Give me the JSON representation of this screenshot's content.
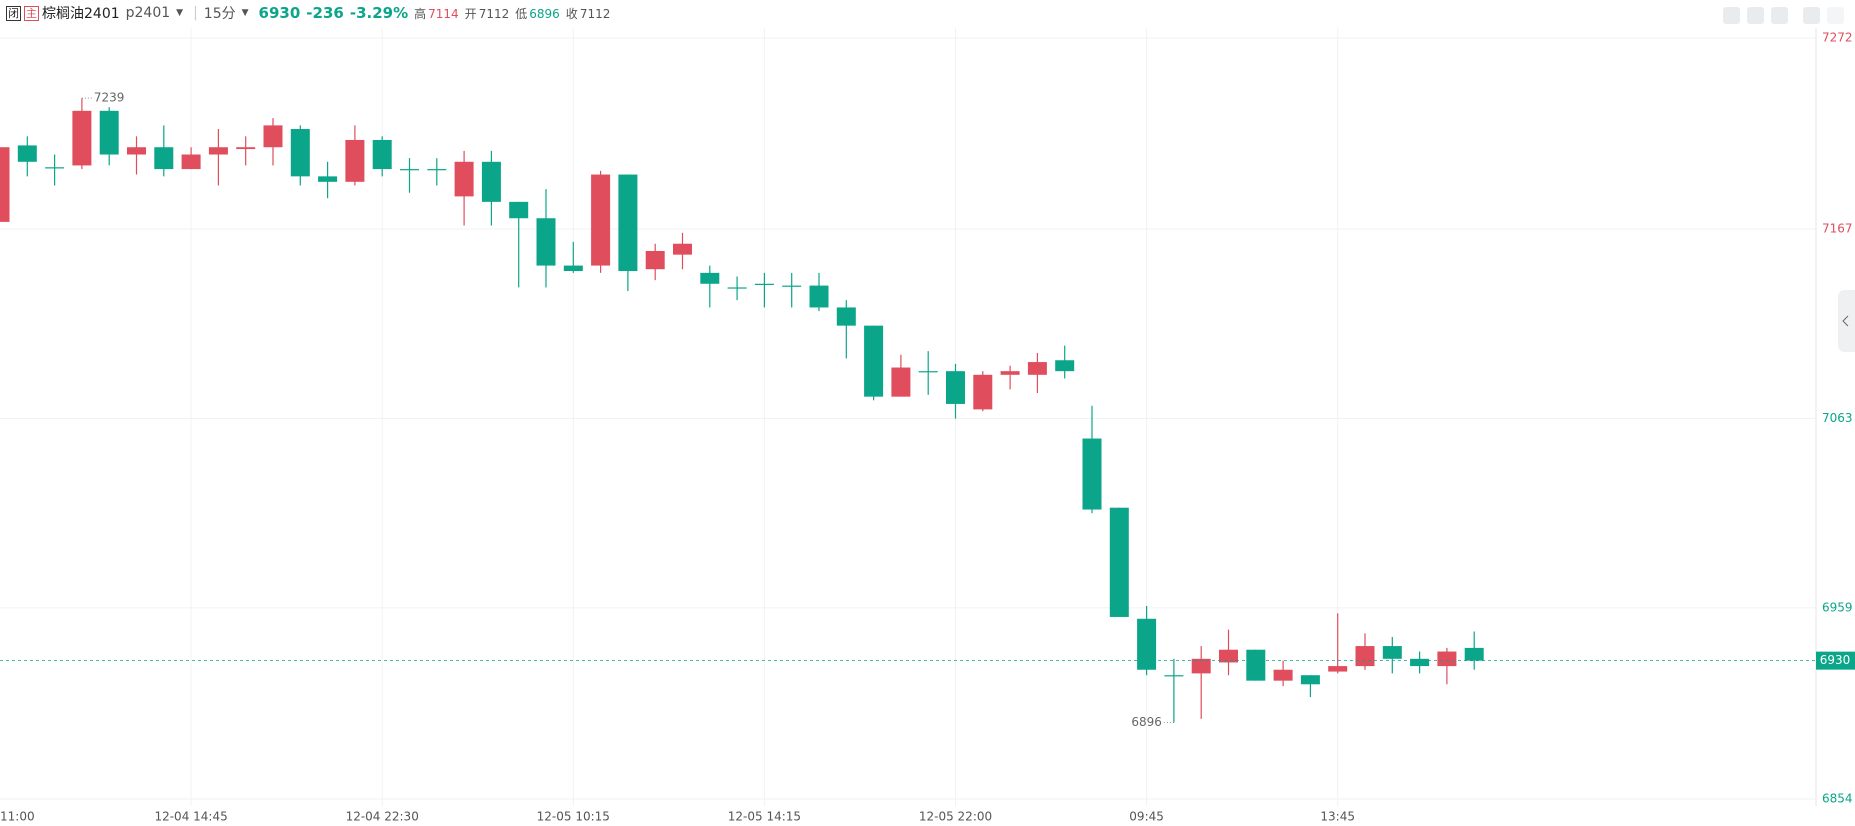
{
  "toolbar": {
    "close_badge": "闭",
    "main_badge": "主",
    "name": "棕榈油2401",
    "code": "p2401",
    "period": "15分",
    "price": 6930,
    "change": -236,
    "change_pct": "-3.29%",
    "stats": [
      {
        "label": "高",
        "value": 7114
      },
      {
        "label": "开",
        "value": 7112
      },
      {
        "label": "低",
        "value": 6896
      },
      {
        "label": "收",
        "value": 7112
      }
    ]
  },
  "chart_data": {
    "type": "candlestick",
    "categories": [
      "11:00",
      null,
      null,
      null,
      null,
      null,
      null,
      "12-04 14:45",
      null,
      null,
      null,
      null,
      null,
      null,
      "12-04 22:30",
      null,
      null,
      null,
      null,
      null,
      null,
      "12-05 10:15",
      null,
      null,
      null,
      null,
      null,
      null,
      "12-05 14:15",
      null,
      null,
      null,
      null,
      null,
      null,
      "12-05 22:00",
      null,
      null,
      null,
      null,
      null,
      null,
      "09:45",
      null,
      null,
      null,
      null,
      null,
      null,
      "13:45",
      null,
      null,
      null,
      null,
      null
    ],
    "open": [
      7171,
      7213,
      7201,
      7202,
      7232,
      7208,
      7212,
      7200,
      7208,
      7211,
      7212,
      7222,
      7196,
      7193,
      7216,
      7200,
      7200,
      7185,
      7204,
      7182,
      7173,
      7147,
      7147,
      7197,
      7145,
      7153,
      7143,
      7135,
      7137,
      7136,
      7136,
      7124,
      7114,
      7075,
      7089,
      7089,
      7068,
      7087,
      7087,
      7095,
      7052,
      7014,
      6953,
      6922,
      6923,
      6929,
      6936,
      6919,
      6922,
      6924,
      6927,
      6938,
      6931,
      6927,
      6937
    ],
    "high": [
      7212,
      7218,
      7208,
      7239,
      7234,
      7218,
      7224,
      7212,
      7222,
      7218,
      7228,
      7224,
      7204,
      7224,
      7218,
      7206,
      7206,
      7210,
      7210,
      7182,
      7189,
      7160,
      7199,
      7197,
      7159,
      7165,
      7147,
      7141,
      7143,
      7143,
      7143,
      7128,
      7114,
      7098,
      7100,
      7093,
      7089,
      7092,
      7099,
      7103,
      7070,
      7014,
      6960,
      6931,
      6938,
      6947,
      6936,
      6930,
      6922,
      6956,
      6945,
      6943,
      6935,
      6937,
      6946
    ],
    "low": [
      7171,
      7196,
      7191,
      7200,
      7202,
      7197,
      7196,
      7200,
      7191,
      7202,
      7202,
      7191,
      7184,
      7191,
      7196,
      7187,
      7191,
      7169,
      7169,
      7135,
      7135,
      7143,
      7143,
      7133,
      7139,
      7145,
      7124,
      7128,
      7124,
      7124,
      7122,
      7096,
      7073,
      7075,
      7076,
      7063,
      7067,
      7079,
      7077,
      7085,
      7011,
      6954,
      6922,
      6896,
      6898,
      6922,
      6919,
      6916,
      6910,
      6923,
      6925,
      6923,
      6923,
      6917,
      6925
    ],
    "close": [
      7212,
      7204,
      7201,
      7232,
      7208,
      7212,
      7200,
      7208,
      7212,
      7212,
      7224,
      7196,
      7193,
      7216,
      7200,
      7200,
      7200,
      7204,
      7182,
      7173,
      7147,
      7144,
      7197,
      7144,
      7155,
      7159,
      7137,
      7135,
      7137,
      7136,
      7124,
      7114,
      7075,
      7091,
      7089,
      7071,
      7087,
      7089,
      7094,
      7089,
      7013,
      6954,
      6925,
      6922,
      6931,
      6936,
      6919,
      6925,
      6917,
      6927,
      6938,
      6931,
      6927,
      6935,
      6930
    ],
    "up_color": "#e04d5c",
    "down_color": "#0ba58a",
    "ylim": [
      6854,
      7272
    ],
    "yticks": [
      7272,
      7167,
      7063,
      6959,
      6854
    ],
    "grid": true,
    "last_price": 6930
  }
}
